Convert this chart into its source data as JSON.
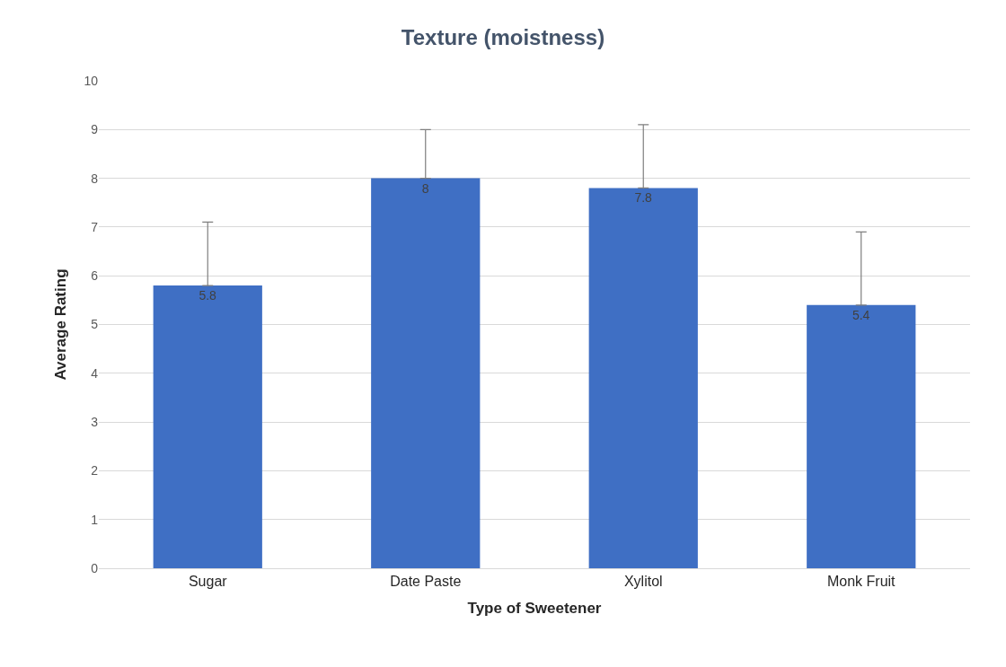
{
  "chart_data": {
    "type": "bar",
    "title": "Texture (moistness)",
    "xlabel": "Type of Sweetener",
    "ylabel": "Average Rating",
    "categories": [
      "Sugar",
      "Date Paste",
      "Xylitol",
      "Monk Fruit"
    ],
    "values": [
      5.8,
      8,
      7.8,
      5.4
    ],
    "errors": [
      [
        5.8,
        7.1
      ],
      [
        8,
        9
      ],
      [
        7.8,
        9.1
      ],
      [
        5.4,
        6.9
      ]
    ],
    "color": "#3f6fc4",
    "data_labels": true,
    "ylim": [
      0,
      10
    ],
    "yticks": [
      0,
      1,
      2,
      3,
      4,
      5,
      6,
      7,
      8,
      9,
      10
    ],
    "grid": "y"
  }
}
